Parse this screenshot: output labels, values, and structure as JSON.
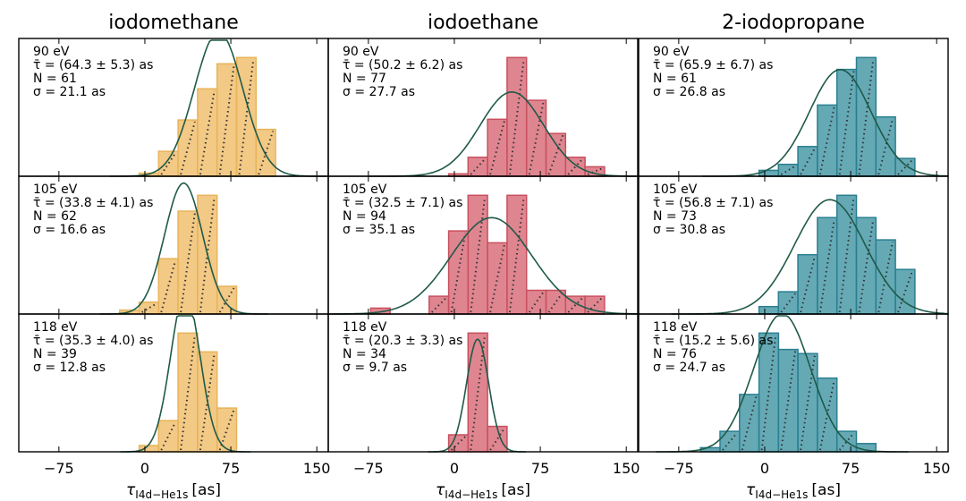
{
  "chart_data": {
    "type": "bar",
    "title": "",
    "xlabel": "τI4d−He1s [as]",
    "xlabel_parts": {
      "symbol": "τ",
      "subscript": "I4d−He1s",
      "unit": "[as]"
    },
    "xlim": [
      -110,
      160
    ],
    "xticks": [
      -75,
      0,
      75,
      150
    ],
    "xtick_labels": [
      "−75",
      "0",
      "75",
      "150"
    ],
    "bin_width": 17,
    "columns": [
      {
        "title": "iodomethane",
        "color": "#f0c070",
        "edge": "#e8b45a"
      },
      {
        "title": "iodoethane",
        "color": "#d9707c",
        "edge": "#c8505e"
      },
      {
        "title": "2-iodopropane",
        "color": "#4a9aa8",
        "edge": "#2a7f90"
      }
    ],
    "fit_color": "#1f5a48",
    "panels": [
      {
        "column": 0,
        "row": 0,
        "energy": "90 eV",
        "tau": "τ̄ = (64.3 ± 5.3) as",
        "n": "N = 61",
        "sigma": "σ = 21.1 as",
        "mean": 64.3,
        "sd": 21.1,
        "bins": [
          [
            -5,
            1
          ],
          [
            12,
            8
          ],
          [
            29,
            18
          ],
          [
            46,
            28
          ],
          [
            63,
            36
          ],
          [
            80,
            38
          ],
          [
            97,
            15
          ]
        ]
      },
      {
        "column": 1,
        "row": 0,
        "energy": "90 eV",
        "tau": "τ̄ = (50.2 ± 6.2) as",
        "n": "N = 77",
        "sigma": "σ = 27.7 as",
        "mean": 50.2,
        "sd": 27.7,
        "bins": [
          [
            -5,
            1
          ],
          [
            12,
            8
          ],
          [
            29,
            24
          ],
          [
            46,
            50
          ],
          [
            63,
            32
          ],
          [
            80,
            18
          ],
          [
            97,
            8
          ],
          [
            114,
            4
          ]
        ]
      },
      {
        "column": 2,
        "row": 0,
        "energy": "90 eV",
        "tau": "τ̄ = (65.9 ± 6.7) as",
        "n": "N = 61",
        "sigma": "σ = 26.8 as",
        "mean": 65.9,
        "sd": 26.8,
        "bins": [
          [
            -5,
            1
          ],
          [
            12,
            2
          ],
          [
            29,
            5
          ],
          [
            46,
            12
          ],
          [
            63,
            18
          ],
          [
            80,
            20
          ],
          [
            97,
            10
          ],
          [
            114,
            3
          ]
        ]
      },
      {
        "column": 0,
        "row": 1,
        "energy": "105 eV",
        "tau": "τ̄ = (33.8 ± 4.1) as",
        "n": "N = 62",
        "sigma": "σ = 16.6 as",
        "mean": 33.8,
        "sd": 16.6,
        "bins": [
          [
            -22,
            1
          ],
          [
            -5,
            3
          ],
          [
            12,
            14
          ],
          [
            29,
            26
          ],
          [
            46,
            30
          ],
          [
            63,
            7
          ]
        ]
      },
      {
        "column": 1,
        "row": 1,
        "energy": "105 eV",
        "tau": "τ̄ = (32.5 ± 7.1) as",
        "n": "N = 94",
        "sigma": "σ = 35.1 as",
        "mean": 32.5,
        "sd": 35.1,
        "bins": [
          [
            -73,
            1
          ],
          [
            -22,
            3
          ],
          [
            -5,
            14
          ],
          [
            12,
            20
          ],
          [
            29,
            12
          ],
          [
            46,
            20
          ],
          [
            63,
            4
          ],
          [
            80,
            4
          ],
          [
            97,
            3
          ],
          [
            114,
            3
          ]
        ]
      },
      {
        "column": 2,
        "row": 1,
        "energy": "105 eV",
        "tau": "τ̄ = (56.8 ± 7.1) as",
        "n": "N = 73",
        "sigma": "σ = 30.8 as",
        "mean": 56.8,
        "sd": 30.8,
        "bins": [
          [
            -5,
            1
          ],
          [
            12,
            3
          ],
          [
            29,
            8
          ],
          [
            46,
            13
          ],
          [
            63,
            16
          ],
          [
            80,
            13
          ],
          [
            97,
            10
          ],
          [
            114,
            6
          ]
        ]
      },
      {
        "column": 0,
        "row": 2,
        "energy": "118 eV",
        "tau": "τ̄ = (35.3 ± 4.0) as",
        "n": "N = 39",
        "sigma": "σ = 12.8 as",
        "mean": 35.3,
        "sd": 12.8,
        "bins": [
          [
            -5,
            1
          ],
          [
            12,
            5
          ],
          [
            29,
            19
          ],
          [
            46,
            16
          ],
          [
            63,
            7
          ]
        ]
      },
      {
        "column": 1,
        "row": 2,
        "energy": "118 eV",
        "tau": "τ̄ = (20.3 ± 3.3) as",
        "n": "N = 34",
        "sigma": "σ = 9.7 as",
        "mean": 20.3,
        "sd": 9.7,
        "bins": [
          [
            -5,
            2
          ],
          [
            12,
            14
          ],
          [
            29,
            3
          ]
        ]
      },
      {
        "column": 2,
        "row": 2,
        "energy": "118 eV",
        "tau": "τ̄ = (15.2 ± 5.6) as",
        "n": "N = 76",
        "sigma": "σ = 24.7 as",
        "mean": 15.2,
        "sd": 24.7,
        "bins": [
          [
            -56,
            1
          ],
          [
            -39,
            5
          ],
          [
            -22,
            14
          ],
          [
            -5,
            29
          ],
          [
            12,
            25
          ],
          [
            29,
            24
          ],
          [
            46,
            18
          ],
          [
            63,
            5
          ],
          [
            80,
            2
          ]
        ]
      }
    ]
  }
}
